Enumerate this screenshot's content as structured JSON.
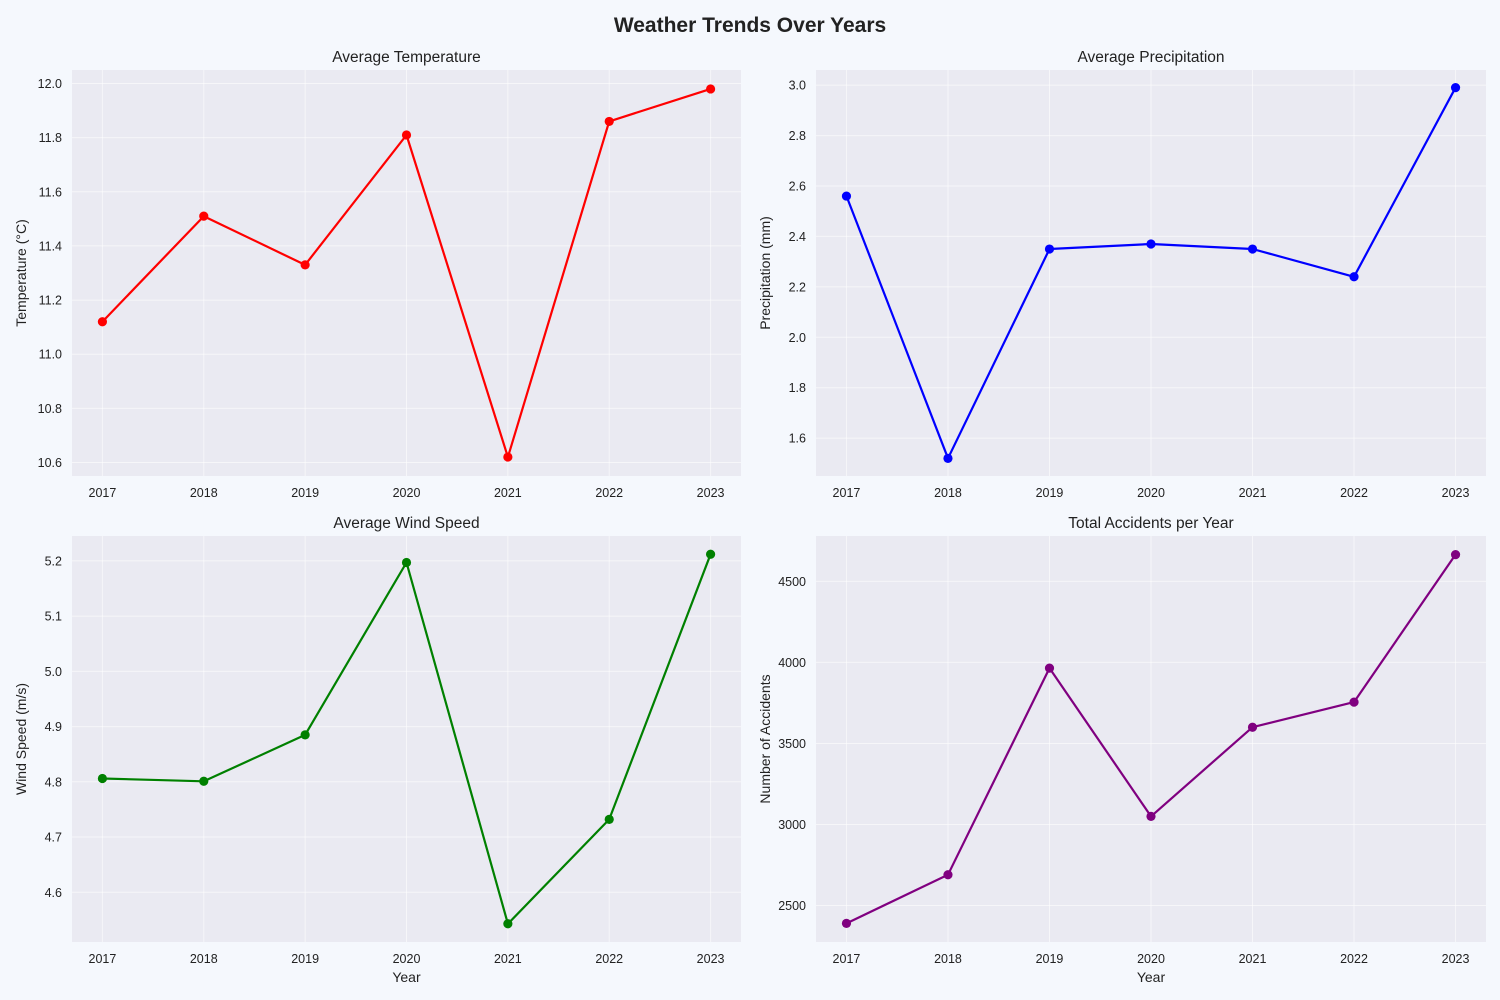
{
  "figure": {
    "title": "Weather Trends Over Years"
  },
  "chart_data": [
    {
      "type": "line",
      "title": "Average Temperature",
      "xlabel": "",
      "ylabel": "Temperature (°C)",
      "x": [
        2017,
        2018,
        2019,
        2020,
        2021,
        2022,
        2023
      ],
      "series": [
        {
          "values": [
            11.12,
            11.51,
            11.33,
            11.81,
            10.62,
            11.86,
            11.98
          ],
          "color": "#ff0000"
        }
      ],
      "ylim": [
        10.55,
        12.05
      ],
      "yticks": [
        10.6,
        10.8,
        11.0,
        11.2,
        11.4,
        11.6,
        11.8,
        12.0
      ],
      "grid": true
    },
    {
      "type": "line",
      "title": "Average Precipitation",
      "xlabel": "",
      "ylabel": "Precipitation (mm)",
      "x": [
        2017,
        2018,
        2019,
        2020,
        2021,
        2022,
        2023
      ],
      "series": [
        {
          "values": [
            2.56,
            1.52,
            2.35,
            2.37,
            2.35,
            2.24,
            2.99
          ],
          "color": "#0000ff"
        }
      ],
      "ylim": [
        1.45,
        3.06
      ],
      "yticks": [
        1.6,
        1.8,
        2.0,
        2.2,
        2.4,
        2.6,
        2.8,
        3.0
      ],
      "grid": true
    },
    {
      "type": "line",
      "title": "Average Wind Speed",
      "xlabel": "Year",
      "ylabel": "Wind Speed (m/s)",
      "x": [
        2017,
        2018,
        2019,
        2020,
        2021,
        2022,
        2023
      ],
      "series": [
        {
          "values": [
            4.806,
            4.801,
            4.885,
            5.197,
            4.543,
            4.732,
            5.212
          ],
          "color": "#008000"
        }
      ],
      "ylim": [
        4.51,
        5.245
      ],
      "yticks": [
        4.6,
        4.7,
        4.8,
        4.9,
        5.0,
        5.1,
        5.2
      ],
      "grid": true
    },
    {
      "type": "line",
      "title": "Total Accidents per Year",
      "xlabel": "Year",
      "ylabel": "Number of Accidents",
      "x": [
        2017,
        2018,
        2019,
        2020,
        2021,
        2022,
        2023
      ],
      "series": [
        {
          "values": [
            2390,
            2690,
            3965,
            3050,
            3600,
            3755,
            4665
          ],
          "color": "#800080"
        }
      ],
      "ylim": [
        2275,
        4780
      ],
      "yticks": [
        2500,
        3000,
        3500,
        4000,
        4500
      ],
      "grid": true
    }
  ]
}
